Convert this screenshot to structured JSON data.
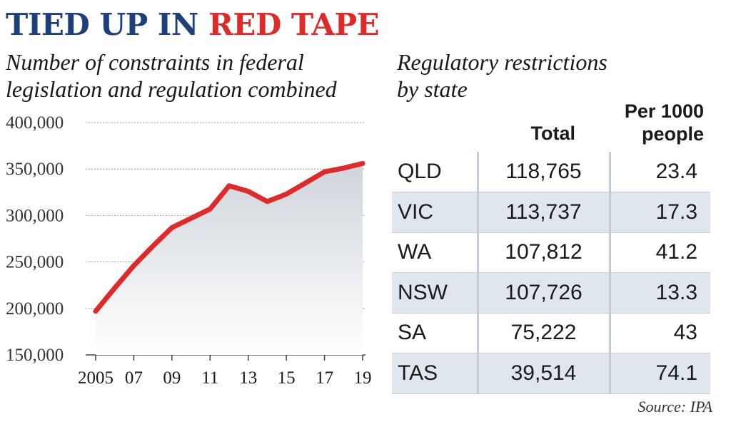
{
  "headline": {
    "part1": "TIED UP IN",
    "part2": "RED TAPE"
  },
  "left_subtitle": {
    "line1": "Number of constraints in federal",
    "line2": "legislation and regulation combined"
  },
  "right_subtitle": {
    "line1": "Regulatory restrictions",
    "line2": "by state"
  },
  "colors": {
    "line": "#e02a2a",
    "headline_blue": "#1d3f7a",
    "headline_red": "#e02a2a",
    "row_alt": "#dfe6ee"
  },
  "source": "Source: IPA",
  "chart_data": [
    {
      "type": "line",
      "title": "Number of constraints in federal legislation and regulation combined",
      "x": [
        2005,
        2006,
        2007,
        2008,
        2009,
        2010,
        2011,
        2012,
        2013,
        2014,
        2015,
        2016,
        2017,
        2018,
        2019
      ],
      "series": [
        {
          "values": [
            197000,
            222000,
            246000,
            267000,
            287000,
            297000,
            307000,
            332000,
            326000,
            315000,
            323000,
            335000,
            347000,
            351000,
            356000
          ]
        }
      ],
      "ylim": [
        150000,
        400000
      ],
      "yticks": [
        400000,
        350000,
        300000,
        250000,
        200000,
        150000
      ],
      "ytick_labels": [
        "400,000",
        "350,000",
        "300,000",
        "250,000",
        "200,000",
        "150,000"
      ],
      "xticks": [
        2005,
        2007,
        2009,
        2011,
        2013,
        2015,
        2017,
        2019
      ],
      "xtick_labels": [
        "2005",
        "07",
        "09",
        "11",
        "13",
        "15",
        "17",
        "19"
      ],
      "grid": true
    },
    {
      "type": "table",
      "title": "Regulatory restrictions by state",
      "columns": [
        "",
        "Total",
        "Per 1000 people"
      ],
      "column_heads": {
        "total": "Total",
        "per_line1": "Per 1000",
        "per_line2": "people"
      },
      "rows": [
        {
          "state": "QLD",
          "total": "118,765",
          "per1000": "23.4"
        },
        {
          "state": "VIC",
          "total": "113,737",
          "per1000": "17.3"
        },
        {
          "state": "WA",
          "total": "107,812",
          "per1000": "41.2"
        },
        {
          "state": "NSW",
          "total": "107,726",
          "per1000": "13.3"
        },
        {
          "state": "SA",
          "total": "75,222",
          "per1000": "43"
        },
        {
          "state": "TAS",
          "total": "39,514",
          "per1000": "74.1"
        }
      ]
    }
  ]
}
